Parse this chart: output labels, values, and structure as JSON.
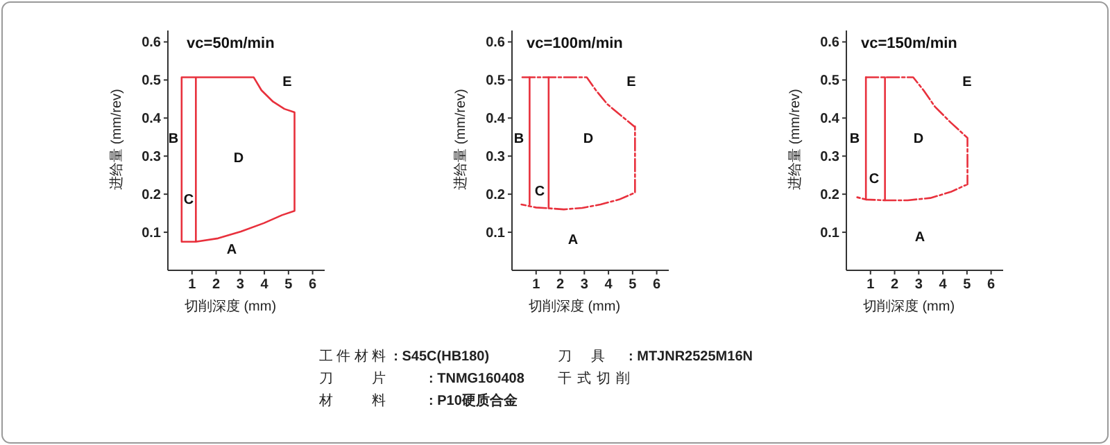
{
  "chart_data": [
    {
      "type": "line",
      "title": "vc=50m/min",
      "xlabel": "切削深度 (mm)",
      "ylabel": "进给量 (mm/rev)",
      "xlim": [
        0,
        6.5
      ],
      "ylim": [
        0,
        0.63
      ],
      "xticks": [
        1,
        2,
        3,
        4,
        5,
        6
      ],
      "yticks": [
        0.1,
        0.2,
        0.3,
        0.4,
        0.5,
        0.6
      ],
      "series": [
        {
          "color": "#e8303c",
          "line_style": "solid",
          "x": [
            1.16,
            1.16,
            0.57,
            0.57,
            3.56,
            3.88,
            4.36,
            4.83,
            5.25,
            5.25,
            4.73,
            3.98,
            3.03,
            2.08,
            1.16
          ],
          "values": [
            0.507,
            0.075,
            0.075,
            0.507,
            0.507,
            0.473,
            0.443,
            0.424,
            0.415,
            0.156,
            0.145,
            0.124,
            0.102,
            0.084,
            0.075
          ]
        }
      ],
      "annotations": [
        "A",
        "B",
        "C",
        "D",
        "E"
      ]
    },
    {
      "type": "line",
      "title": "vc=100m/min",
      "xlabel": "切削深度 (mm)",
      "ylabel": "进给量 (mm/rev)",
      "xlim": [
        0,
        6.5
      ],
      "ylim": [
        0,
        0.63
      ],
      "xticks": [
        1,
        2,
        3,
        4,
        5,
        6
      ],
      "yticks": [
        0.1,
        0.2,
        0.3,
        0.4,
        0.5,
        0.6
      ],
      "series": [
        {
          "color": "#e8303c",
          "line_style": "dashed",
          "x": [
            0.43,
            3.1,
            3.48,
            3.96,
            4.53,
            5.07,
            5.1,
            5.1,
            4.44,
            3.67,
            2.91,
            2.15,
            1.52,
            1.0,
            0.39
          ],
          "values": [
            0.507,
            0.507,
            0.473,
            0.436,
            0.406,
            0.378,
            0.378,
            0.204,
            0.186,
            0.173,
            0.164,
            0.16,
            0.163,
            0.165,
            0.173
          ]
        },
        {
          "color": "#e8303c",
          "line_style": "solid",
          "x": [
            0.73,
            0.73
          ],
          "values": [
            0.173,
            0.507
          ]
        },
        {
          "color": "#e8303c",
          "line_style": "solid",
          "x": [
            1.52,
            1.52
          ],
          "values": [
            0.163,
            0.507
          ]
        }
      ],
      "annotations": [
        "A",
        "B",
        "C",
        "D",
        "E"
      ]
    },
    {
      "type": "line",
      "title": "vc=150m/min",
      "xlabel": "切削深度 (mm)",
      "ylabel": "进给量 (mm/rev)",
      "xlim": [
        0,
        6.5
      ],
      "ylim": [
        0,
        0.63
      ],
      "xticks": [
        1,
        2,
        3,
        4,
        5,
        6
      ],
      "yticks": [
        0.1,
        0.2,
        0.3,
        0.4,
        0.5,
        0.6
      ],
      "series": [
        {
          "color": "#e8303c",
          "line_style": "dashed",
          "x": [
            0.81,
            2.77,
            3.2,
            3.67,
            4.33,
            5.02,
            5.02,
            4.33,
            3.48,
            2.54,
            1.6,
            0.81,
            0.38
          ],
          "values": [
            0.507,
            0.507,
            0.473,
            0.43,
            0.388,
            0.348,
            0.226,
            0.206,
            0.19,
            0.184,
            0.184,
            0.186,
            0.193
          ]
        },
        {
          "color": "#e8303c",
          "line_style": "solid",
          "x": [
            0.81,
            0.81
          ],
          "values": [
            0.186,
            0.507
          ]
        },
        {
          "color": "#e8303c",
          "line_style": "solid",
          "x": [
            1.6,
            1.6
          ],
          "values": [
            0.184,
            0.507
          ]
        }
      ],
      "annotations": [
        "A",
        "B",
        "C",
        "D",
        "E"
      ]
    },
    {
      "type": "other",
      "annotations": [
        "工件材料 **: S45C(HB180)**",
        "刀片 **: TNMG160408**",
        "材料 **: P10硬质合金**",
        "刀具 **: MTJNR2525M16N**",
        "干式切削"
      ]
    }
  ]
}
